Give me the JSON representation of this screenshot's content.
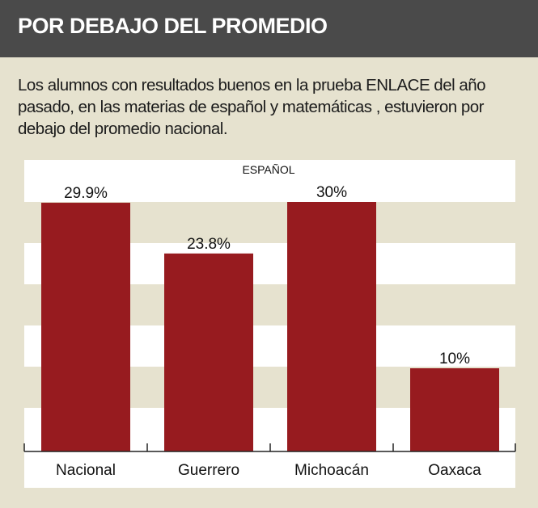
{
  "header": {
    "title": "POR DEBAJO DEL PROMEDIO"
  },
  "description": "Los alumnos con resultados buenos en la prueba ENLACE del año pasado, en las materias de español y matemáticas , estuvieron por debajo del promedio nacional.",
  "colors": {
    "header_bg": "#4a4a4a",
    "page_bg": "#e6e2cf",
    "bar": "#971b1f",
    "band_light": "#ffffff",
    "band_dark": "#e6e2cf"
  },
  "chart_data": {
    "type": "bar",
    "title": "ESPAÑOL",
    "categories": [
      "Nacional",
      "Guerrero",
      "Michoacán",
      "Oaxaca"
    ],
    "values": [
      29.9,
      23.8,
      30,
      10
    ],
    "value_labels": [
      "29.9%",
      "23.8%",
      "30%",
      "10%"
    ],
    "ylim": [
      0,
      30
    ],
    "xlabel": "",
    "ylabel": "",
    "grid": true
  }
}
